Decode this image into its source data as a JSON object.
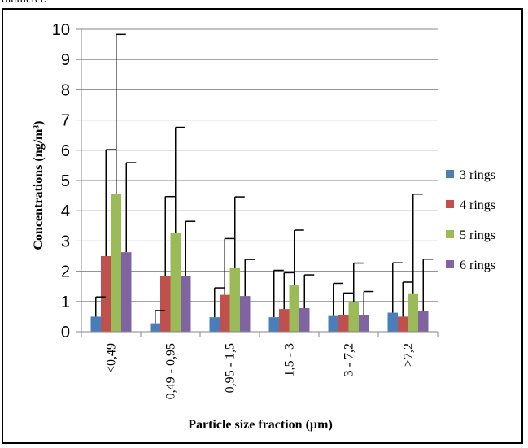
{
  "caption_fragment": "diameter.",
  "chart_data": {
    "type": "bar",
    "categories": [
      "<0,49",
      "0,49 - 0,95",
      "0,95 - 1,5",
      "1,5 - 3",
      "3 - 7,2",
      ">7,2"
    ],
    "series": [
      {
        "name": "3 rings",
        "color": "#4a7ebb",
        "values": [
          0.5,
          0.28,
          0.48,
          0.48,
          0.52,
          0.63
        ],
        "errors": [
          0.65,
          0.42,
          0.97,
          1.55,
          1.08,
          1.65
        ]
      },
      {
        "name": "4 rings",
        "color": "#c0504d",
        "values": [
          2.5,
          1.85,
          1.22,
          0.75,
          0.55,
          0.5
        ],
        "errors": [
          3.52,
          2.62,
          1.86,
          1.2,
          0.73,
          1.14
        ]
      },
      {
        "name": "5 rings",
        "color": "#9bbb59",
        "values": [
          4.57,
          3.28,
          2.1,
          1.53,
          0.97,
          1.27
        ],
        "errors": [
          5.26,
          3.48,
          2.36,
          1.83,
          1.3,
          3.28
        ]
      },
      {
        "name": "6 rings",
        "color": "#8064a2",
        "values": [
          2.63,
          1.83,
          1.18,
          0.78,
          0.55,
          0.7
        ],
        "errors": [
          2.96,
          1.82,
          1.21,
          1.1,
          0.78,
          1.7
        ]
      }
    ],
    "title": "",
    "xlabel": "Particle size fraction (µm)",
    "ylabel": "Concentrations (ng/m³)",
    "ylim": [
      0,
      10
    ],
    "yticks": [
      "0",
      "1",
      "2",
      "3",
      "4",
      "5",
      "6",
      "7",
      "8",
      "9",
      "10"
    ],
    "grid": true,
    "legend_position": "right"
  }
}
